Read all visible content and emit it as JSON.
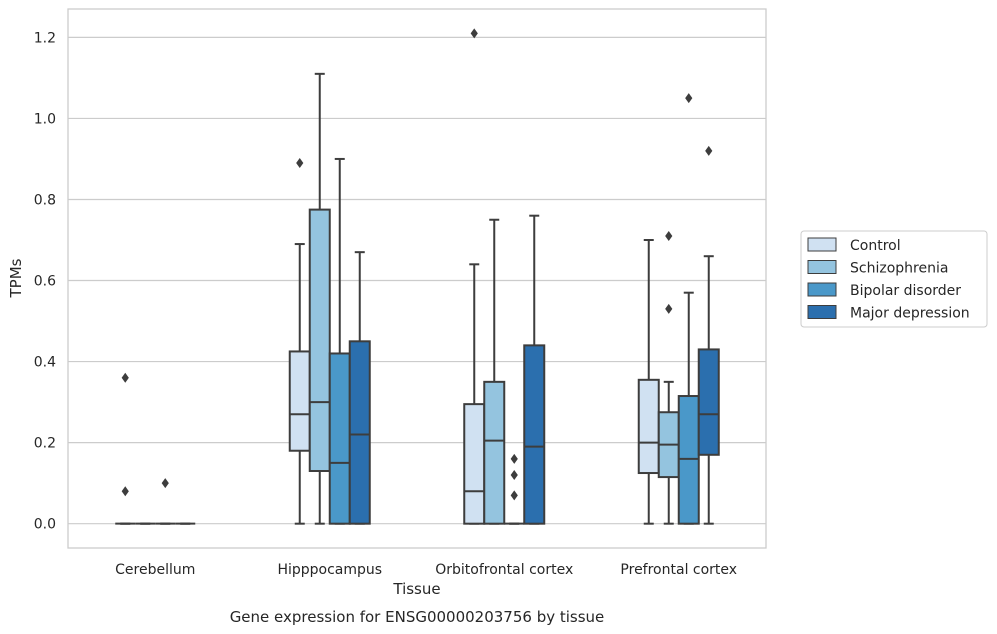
{
  "chart_data": {
    "type": "box",
    "title": "",
    "caption": "Gene expression for ENSG00000203756 by tissue",
    "xlabel": "Tissue",
    "ylabel": "TPMs",
    "ylim": [
      -0.06,
      1.27
    ],
    "yticks": [
      "0.0",
      "0.2",
      "0.4",
      "0.6",
      "0.8",
      "1.0",
      "1.2"
    ],
    "grid": "horizontal",
    "legend_position": "right",
    "categories": [
      "Cerebellum",
      "Hipppocampus",
      "Orbitofrontal cortex",
      "Prefrontal cortex"
    ],
    "series": [
      {
        "name": "Control",
        "color": "#d0e1f2",
        "boxes": [
          {
            "whislo": 0.0,
            "q1": 0.0,
            "med": 0.0,
            "q3": 0.0,
            "whishi": 0.0,
            "fliers": [
              0.36,
              0.08
            ]
          },
          {
            "whislo": 0.0,
            "q1": 0.18,
            "med": 0.27,
            "q3": 0.425,
            "whishi": 0.69,
            "fliers": [
              0.89
            ]
          },
          {
            "whislo": 0.0,
            "q1": 0.0,
            "med": 0.08,
            "q3": 0.295,
            "whishi": 0.64,
            "fliers": [
              1.21
            ]
          },
          {
            "whislo": 0.0,
            "q1": 0.125,
            "med": 0.2,
            "q3": 0.355,
            "whishi": 0.7,
            "fliers": []
          }
        ]
      },
      {
        "name": "Schizophrenia",
        "color": "#94c4df",
        "boxes": [
          {
            "whislo": 0.0,
            "q1": 0.0,
            "med": 0.0,
            "q3": 0.0,
            "whishi": 0.0,
            "fliers": []
          },
          {
            "whislo": 0.0,
            "q1": 0.13,
            "med": 0.3,
            "q3": 0.775,
            "whishi": 1.11,
            "fliers": []
          },
          {
            "whislo": 0.0,
            "q1": 0.0,
            "med": 0.205,
            "q3": 0.35,
            "whishi": 0.75,
            "fliers": []
          },
          {
            "whislo": 0.0,
            "q1": 0.115,
            "med": 0.195,
            "q3": 0.275,
            "whishi": 0.35,
            "fliers": [
              0.53,
              0.71
            ]
          }
        ]
      },
      {
        "name": "Bipolar disorder",
        "color": "#4a98c9",
        "boxes": [
          {
            "whislo": 0.0,
            "q1": 0.0,
            "med": 0.0,
            "q3": 0.0,
            "whishi": 0.0,
            "fliers": [
              0.1
            ]
          },
          {
            "whislo": 0.0,
            "q1": 0.0,
            "med": 0.15,
            "q3": 0.42,
            "whishi": 0.9,
            "fliers": []
          },
          {
            "whislo": 0.0,
            "q1": 0.0,
            "med": 0.0,
            "q3": 0.0,
            "whishi": 0.0,
            "fliers": [
              0.07,
              0.12,
              0.16
            ]
          },
          {
            "whislo": 0.0,
            "q1": 0.0,
            "med": 0.16,
            "q3": 0.315,
            "whishi": 0.57,
            "fliers": [
              1.05
            ]
          }
        ]
      },
      {
        "name": "Major depression",
        "color": "#2b6fae",
        "boxes": [
          {
            "whislo": 0.0,
            "q1": 0.0,
            "med": 0.0,
            "q3": 0.0,
            "whishi": 0.0,
            "fliers": []
          },
          {
            "whislo": 0.0,
            "q1": 0.0,
            "med": 0.22,
            "q3": 0.45,
            "whishi": 0.67,
            "fliers": []
          },
          {
            "whislo": 0.0,
            "q1": 0.0,
            "med": 0.19,
            "q3": 0.44,
            "whishi": 0.76,
            "fliers": []
          },
          {
            "whislo": 0.0,
            "q1": 0.17,
            "med": 0.27,
            "q3": 0.43,
            "whishi": 0.66,
            "fliers": [
              0.92
            ]
          }
        ]
      }
    ]
  }
}
